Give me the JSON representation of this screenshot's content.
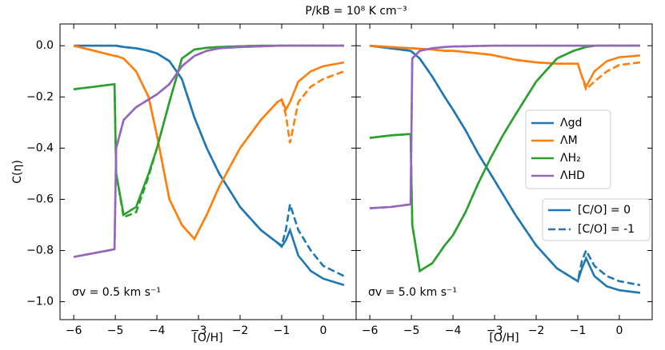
{
  "title": "P/kB = 10⁸ K cm⁻³",
  "y_label": "C(η)",
  "legend": {
    "entries": [
      {
        "name": "Λgd",
        "color": "#1f77b4"
      },
      {
        "name": "ΛM",
        "color": "#ff7f0e"
      },
      {
        "name": "ΛH₂",
        "color": "#2ca02c"
      },
      {
        "name": "ΛHD",
        "color": "#9467bd"
      }
    ],
    "styles": [
      {
        "label": "[C/O] = 0",
        "dashed": false
      },
      {
        "label": "[C/O] = -1",
        "dashed": true
      }
    ]
  },
  "chart_data": [
    {
      "type": "line",
      "x_label": "[O/H]",
      "annotation": "σv = 0.5 km s⁻¹",
      "xlim": [
        -6.33,
        0.79
      ],
      "ylim": [
        -1.07,
        0.085
      ],
      "xticks": [
        {
          "value": -6,
          "label": "−6"
        },
        {
          "value": -5,
          "label": "−5"
        },
        {
          "value": -4,
          "label": "−4"
        },
        {
          "value": -3,
          "label": "−3"
        },
        {
          "value": -2,
          "label": "−2"
        },
        {
          "value": -1,
          "label": "−1"
        },
        0
      ],
      "yticks": [
        {
          "value": 0,
          "label": "0.0"
        },
        {
          "value": -0.2,
          "label": "−0.2"
        },
        {
          "value": -0.4,
          "label": "−0.4"
        },
        {
          "value": -0.6,
          "label": "−0.6"
        },
        {
          "value": -0.8,
          "label": "−0.8"
        },
        {
          "value": -1,
          "label": "−1.0"
        }
      ],
      "x": [
        -6,
        -5.5,
        -5.02,
        -4.98,
        -4.8,
        -4.5,
        -4.2,
        -4,
        -3.7,
        -3.4,
        -3.1,
        -2.8,
        -2.5,
        -2,
        -1.5,
        -1.1,
        -1,
        -0.9,
        -0.8,
        -0.6,
        -0.3,
        0,
        0.5
      ],
      "series": [
        {
          "color": "#1f77b4",
          "values": [
            0,
            0,
            0,
            0,
            -0.005,
            -0.01,
            -0.02,
            -0.03,
            -0.06,
            -0.13,
            -0.28,
            -0.4,
            -0.5,
            -0.63,
            -0.72,
            -0.77,
            -0.785,
            -0.76,
            -0.72,
            -0.82,
            -0.88,
            -0.91,
            -0.935
          ],
          "dashed_values": [
            0,
            0,
            0,
            0,
            -0.005,
            -0.01,
            -0.02,
            -0.03,
            -0.06,
            -0.13,
            -0.28,
            -0.4,
            -0.5,
            -0.63,
            -0.72,
            -0.77,
            -0.78,
            -0.72,
            -0.62,
            -0.72,
            -0.8,
            -0.86,
            -0.9
          ]
        },
        {
          "color": "#ff7f0e",
          "values": [
            0,
            -0.02,
            -0.04,
            -0.04,
            -0.05,
            -0.1,
            -0.2,
            -0.35,
            -0.6,
            -0.7,
            -0.755,
            -0.66,
            -0.55,
            -0.4,
            -0.29,
            -0.22,
            -0.21,
            -0.25,
            -0.22,
            -0.14,
            -0.1,
            -0.08,
            -0.065
          ],
          "dashed_values": [
            0,
            -0.02,
            -0.04,
            -0.04,
            -0.05,
            -0.1,
            -0.2,
            -0.35,
            -0.6,
            -0.7,
            -0.755,
            -0.66,
            -0.55,
            -0.4,
            -0.29,
            -0.22,
            -0.21,
            -0.27,
            -0.38,
            -0.22,
            -0.16,
            -0.13,
            -0.1
          ]
        },
        {
          "color": "#2ca02c",
          "values": [
            -0.17,
            -0.16,
            -0.15,
            -0.5,
            -0.66,
            -0.63,
            -0.5,
            -0.4,
            -0.22,
            -0.05,
            -0.015,
            -0.008,
            -0.005,
            -0.002,
            0,
            0,
            0,
            0,
            0,
            0,
            0,
            0,
            0
          ],
          "dashed_values": [
            -0.17,
            -0.16,
            -0.15,
            -0.5,
            -0.67,
            -0.65,
            -0.51,
            -0.4,
            -0.22,
            -0.05,
            -0.015,
            -0.008,
            -0.005,
            -0.002,
            0,
            0,
            0,
            0,
            0,
            0,
            0,
            0,
            0
          ]
        },
        {
          "color": "#9467bd",
          "values": [
            -0.825,
            -0.81,
            -0.795,
            -0.4,
            -0.29,
            -0.24,
            -0.21,
            -0.19,
            -0.15,
            -0.08,
            -0.04,
            -0.02,
            -0.01,
            -0.005,
            -0.002,
            0,
            0,
            0,
            0,
            0,
            0,
            0,
            0
          ],
          "dashed_values": [
            -0.825,
            -0.81,
            -0.795,
            -0.4,
            -0.29,
            -0.24,
            -0.21,
            -0.19,
            -0.15,
            -0.08,
            -0.04,
            -0.02,
            -0.01,
            -0.005,
            -0.002,
            0,
            0,
            0,
            0,
            0,
            0,
            0,
            0
          ]
        }
      ]
    },
    {
      "type": "line",
      "x_label": "[O/H]",
      "annotation": "σv = 5.0 km s⁻¹",
      "xlim": [
        -6.33,
        0.79
      ],
      "ylim": [
        -1.07,
        0.085
      ],
      "xticks": [
        {
          "value": -6,
          "label": "−6"
        },
        {
          "value": -5,
          "label": "−5"
        },
        {
          "value": -4,
          "label": "−4"
        },
        {
          "value": -3,
          "label": "−3"
        },
        {
          "value": -2,
          "label": "−2"
        },
        {
          "value": -1,
          "label": "−1"
        },
        0
      ],
      "x": [
        -6,
        -5.5,
        -5.02,
        -4.98,
        -4.8,
        -4.5,
        -4.2,
        -4,
        -3.7,
        -3.4,
        -3.1,
        -2.8,
        -2.5,
        -2,
        -1.5,
        -1.1,
        -1,
        -0.9,
        -0.8,
        -0.6,
        -0.3,
        0,
        0.5
      ],
      "series": [
        {
          "color": "#1f77b4",
          "values": [
            0,
            -0.01,
            -0.02,
            -0.025,
            -0.05,
            -0.12,
            -0.2,
            -0.25,
            -0.33,
            -0.42,
            -0.5,
            -0.58,
            -0.66,
            -0.78,
            -0.87,
            -0.91,
            -0.92,
            -0.87,
            -0.83,
            -0.9,
            -0.94,
            -0.955,
            -0.965
          ],
          "dashed_values": [
            0,
            -0.01,
            -0.02,
            -0.025,
            -0.05,
            -0.12,
            -0.2,
            -0.25,
            -0.33,
            -0.42,
            -0.5,
            -0.58,
            -0.66,
            -0.78,
            -0.87,
            -0.91,
            -0.92,
            -0.84,
            -0.8,
            -0.86,
            -0.9,
            -0.92,
            -0.935
          ]
        },
        {
          "color": "#ff7f0e",
          "values": [
            0,
            -0.005,
            -0.01,
            -0.01,
            -0.012,
            -0.015,
            -0.02,
            -0.02,
            -0.025,
            -0.03,
            -0.035,
            -0.045,
            -0.055,
            -0.065,
            -0.07,
            -0.07,
            -0.07,
            -0.12,
            -0.16,
            -0.1,
            -0.06,
            -0.045,
            -0.038
          ],
          "dashed_values": [
            0,
            -0.005,
            -0.01,
            -0.01,
            -0.012,
            -0.015,
            -0.02,
            -0.02,
            -0.025,
            -0.03,
            -0.035,
            -0.045,
            -0.055,
            -0.065,
            -0.07,
            -0.07,
            -0.07,
            -0.12,
            -0.17,
            -0.14,
            -0.1,
            -0.075,
            -0.065
          ]
        },
        {
          "color": "#2ca02c",
          "values": [
            -0.36,
            -0.35,
            -0.345,
            -0.7,
            -0.88,
            -0.85,
            -0.78,
            -0.74,
            -0.65,
            -0.54,
            -0.44,
            -0.35,
            -0.27,
            -0.14,
            -0.05,
            -0.02,
            -0.015,
            -0.01,
            -0.005,
            0,
            0,
            0,
            0
          ],
          "dashed_values": [
            -0.36,
            -0.35,
            -0.345,
            -0.7,
            -0.88,
            -0.85,
            -0.78,
            -0.74,
            -0.65,
            -0.54,
            -0.44,
            -0.35,
            -0.27,
            -0.14,
            -0.05,
            -0.02,
            -0.015,
            -0.01,
            -0.005,
            0,
            0,
            0,
            0
          ]
        },
        {
          "color": "#9467bd",
          "values": [
            -0.635,
            -0.63,
            -0.62,
            -0.05,
            -0.02,
            -0.01,
            -0.005,
            -0.003,
            -0.002,
            -0.001,
            0,
            0,
            0,
            0,
            0,
            0,
            0,
            0,
            0,
            0,
            0,
            0,
            0
          ],
          "dashed_values": [
            -0.635,
            -0.63,
            -0.62,
            -0.05,
            -0.02,
            -0.01,
            -0.005,
            -0.003,
            -0.002,
            -0.001,
            0,
            0,
            0,
            0,
            0,
            0,
            0,
            0,
            0,
            0,
            0,
            0,
            0
          ]
        }
      ]
    }
  ]
}
